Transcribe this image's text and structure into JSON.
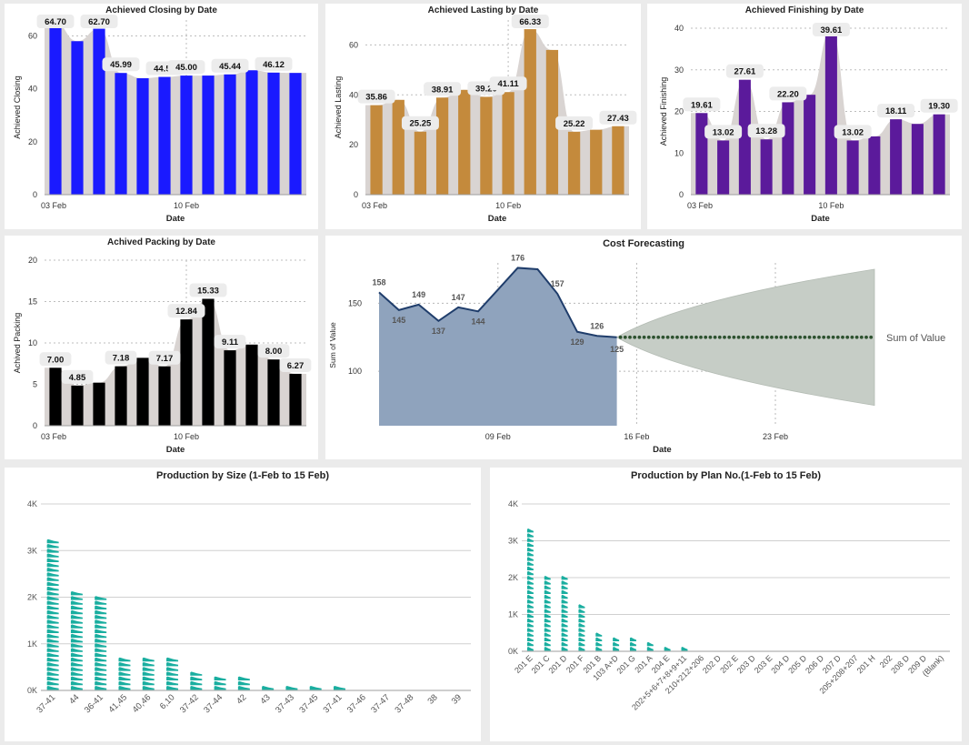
{
  "colors": {
    "closing": "#1a1aff",
    "lasting": "#c48a3c",
    "finishing": "#5b1a9b",
    "packing": "#000000",
    "area": "#d9d4d2",
    "cost_line": "#1f3d6b",
    "cost_fill": "#8fa3bd",
    "forecast_band": "#c6cdc6",
    "forecast_dots": "#2e5230",
    "pictograph": "#1aaea0"
  },
  "pictograph_icon": "shoe-icon",
  "charts": {
    "closing": {
      "title": "Achieved Closing by Date",
      "chart_data": {
        "type": "bar",
        "title": "Achieved Closing by Date",
        "xlabel": "Date",
        "ylabel": "Achieved Closing",
        "x_ticks": [
          "03 Feb",
          "10 Feb"
        ],
        "y_ticks": [
          "0",
          "20",
          "40",
          "60"
        ],
        "ylim": [
          0,
          66
        ],
        "categories": [
          "03 Feb",
          "04 Feb",
          "05 Feb",
          "06 Feb",
          "07 Feb",
          "08 Feb",
          "10 Feb",
          "11 Feb",
          "12 Feb",
          "13 Feb",
          "14 Feb",
          "15 Feb"
        ],
        "values": [
          64.7,
          58.0,
          62.7,
          45.99,
          44.0,
          44.5,
          45.0,
          45.0,
          45.44,
          47.0,
          46.12,
          46.0
        ],
        "data_labels": [
          "64.70",
          "",
          "62.70",
          "45.99",
          "",
          "44.50",
          "45.00",
          "",
          "45.44",
          "",
          "46.12",
          ""
        ],
        "grid": true
      }
    },
    "lasting": {
      "title": "Achieved Lasting by Date",
      "chart_data": {
        "type": "bar",
        "title": "Achieved Lasting by Date",
        "xlabel": "Date",
        "ylabel": "Achieved Lasting",
        "x_ticks": [
          "03 Feb",
          "10 Feb"
        ],
        "y_ticks": [
          "0",
          "20",
          "40",
          "60"
        ],
        "ylim": [
          0,
          70
        ],
        "categories": [
          "03 Feb",
          "04 Feb",
          "05 Feb",
          "06 Feb",
          "07 Feb",
          "08 Feb",
          "10 Feb",
          "11 Feb",
          "12 Feb",
          "13 Feb",
          "14 Feb",
          "15 Feb"
        ],
        "values": [
          35.86,
          38.0,
          25.25,
          38.91,
          42.0,
          39.2,
          41.11,
          66.33,
          58.0,
          25.22,
          26.0,
          27.43
        ],
        "data_labels": [
          "35.86",
          "",
          "25.25",
          "38.91",
          "",
          "39.20",
          "41.11",
          "66.33",
          "",
          "25.22",
          "",
          "27.43"
        ],
        "grid": true
      }
    },
    "finishing": {
      "title": "Achieved Finishing by Date",
      "chart_data": {
        "type": "bar",
        "title": "Achieved Finishing by Date",
        "xlabel": "Date",
        "ylabel": "Achieved Finishing",
        "x_ticks": [
          "03 Feb",
          "10 Feb"
        ],
        "y_ticks": [
          "0",
          "10",
          "20",
          "30",
          "40"
        ],
        "ylim": [
          0,
          40
        ],
        "categories": [
          "03 Feb",
          "04 Feb",
          "05 Feb",
          "06 Feb",
          "07 Feb",
          "08 Feb",
          "10 Feb",
          "11 Feb",
          "12 Feb",
          "13 Feb",
          "14 Feb",
          "15 Feb"
        ],
        "values": [
          19.61,
          13.02,
          27.61,
          13.28,
          22.2,
          24.0,
          39.61,
          13.02,
          14.0,
          18.11,
          17.0,
          19.3
        ],
        "data_labels": [
          "19.61",
          "13.02",
          "27.61",
          "13.28",
          "22.20",
          "",
          "39.61",
          "13.02",
          "",
          "18.11",
          "",
          "19.30"
        ],
        "grid": true
      }
    },
    "packing": {
      "title": "Achived Packing by Date",
      "chart_data": {
        "type": "bar",
        "title": "Achived Packing by Date",
        "xlabel": "Date",
        "ylabel": "Achived Packing",
        "x_ticks": [
          "03 Feb",
          "10 Feb"
        ],
        "y_ticks": [
          "0",
          "5",
          "10",
          "15",
          "20"
        ],
        "ylim": [
          0,
          20
        ],
        "categories": [
          "03 Feb",
          "04 Feb",
          "05 Feb",
          "06 Feb",
          "07 Feb",
          "08 Feb",
          "10 Feb",
          "11 Feb",
          "12 Feb",
          "13 Feb",
          "14 Feb",
          "15 Feb"
        ],
        "values": [
          7.0,
          4.85,
          5.2,
          7.18,
          8.2,
          7.17,
          12.84,
          15.33,
          9.11,
          9.8,
          8.0,
          6.27
        ],
        "data_labels": [
          "7.00",
          "4.85",
          "",
          "7.18",
          "",
          "7.17",
          "12.84",
          "15.33",
          "9.11",
          "",
          "8.00",
          "6.27"
        ],
        "grid": true
      }
    },
    "cost": {
      "title": "Cost Forecasting",
      "chart_data": {
        "type": "area",
        "title": "Cost Forecasting",
        "xlabel": "Date",
        "ylabel": "Sum of Value",
        "x_ticks": [
          "09 Feb",
          "16 Feb",
          "23 Feb"
        ],
        "y_ticks": [
          "100",
          "150"
        ],
        "ylim": [
          60,
          185
        ],
        "series": [
          {
            "name": "Sum of Value",
            "x": [
              "03 Feb",
              "04 Feb",
              "05 Feb",
              "06 Feb",
              "07 Feb",
              "08 Feb",
              "09 Feb",
              "10 Feb",
              "11 Feb",
              "12 Feb",
              "13 Feb",
              "14 Feb",
              "15 Feb"
            ],
            "values": [
              158,
              145,
              149,
              137,
              147,
              144,
              160,
              176,
              175,
              157,
              129,
              126,
              125
            ],
            "data_labels": [
              "158",
              "145",
              "149",
              "137",
              "147",
              "144",
              "",
              "176",
              "",
              "157",
              "129",
              "126",
              "125"
            ]
          }
        ],
        "forecast": {
          "x_start": "15 Feb",
          "x_end": "28 Feb",
          "value": 125,
          "upper_end": 175,
          "lower_end": 75
        },
        "legend": "right",
        "grid": true
      }
    },
    "size": {
      "title": "Production by Size (1-Feb to 15 Feb)",
      "chart_data": {
        "type": "bar",
        "title": "Production by Size (1-Feb to 15 Feb)",
        "y_ticks": [
          "0K",
          "1K",
          "2K",
          "3K",
          "4K"
        ],
        "ylim": [
          0,
          4000
        ],
        "categories": [
          "37-41",
          "44",
          "36-41",
          "41,45",
          "40,46",
          "6,10",
          "37-42",
          "37-44",
          "42",
          "43",
          "37-43",
          "37-45",
          "37-41",
          "37-46",
          "37-47",
          "37-48",
          "38",
          "39"
        ],
        "values": [
          3250,
          2080,
          2060,
          700,
          700,
          660,
          420,
          300,
          280,
          140,
          130,
          120,
          80,
          0,
          0,
          0,
          0,
          0
        ],
        "grid": true
      }
    },
    "plan": {
      "title": "Production by Plan No.(1-Feb to 15 Feb)",
      "chart_data": {
        "type": "bar",
        "title": "Production by Plan No.(1-Feb to 15 Feb)",
        "y_ticks": [
          "0K",
          "1K",
          "2K",
          "3K",
          "4K"
        ],
        "ylim": [
          0,
          4000
        ],
        "categories": [
          "201 E",
          "201 C",
          "201 D",
          "201 F",
          "201 B",
          "103 A+D",
          "201 G",
          "201 A",
          "204 E",
          "202+5+6+7+8+9+11",
          "210+212+206",
          "202 D",
          "202 E",
          "203 D",
          "203 E",
          "204 D",
          "205 D",
          "206 D",
          "207 D",
          "205+208+207",
          "201 H",
          "202",
          "208 D",
          "209 D",
          "(Blank)"
        ],
        "values": [
          3350,
          2050,
          2000,
          1320,
          520,
          400,
          350,
          200,
          100,
          60,
          0,
          0,
          0,
          0,
          0,
          0,
          0,
          0,
          0,
          0,
          0,
          0,
          0,
          0,
          0
        ],
        "grid": true
      }
    }
  }
}
